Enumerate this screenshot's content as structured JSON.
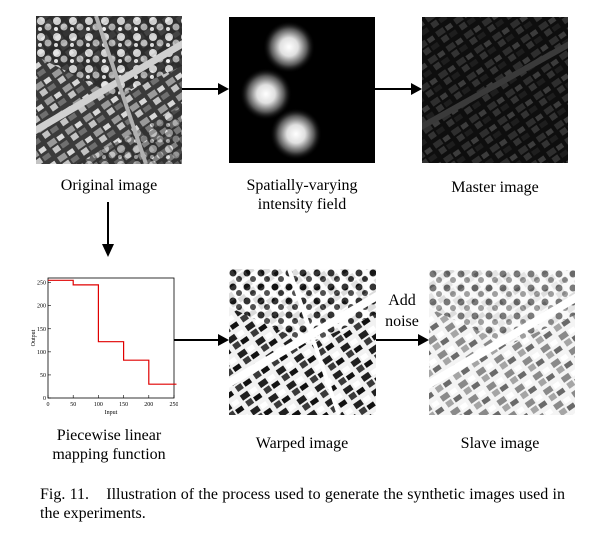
{
  "figure": {
    "captions": {
      "original": "Original image",
      "field_line1": "Spatially-varying",
      "field_line2": "intensity field",
      "master": "Master image",
      "piecewise_line1": "Piecewise linear",
      "piecewise_line2": "mapping function",
      "warped": "Warped image",
      "slave": "Slave image"
    },
    "noise_label_line1": "Add",
    "noise_label_line2": "noise",
    "caption_label": "Fig. 11.",
    "caption_text": "Illustration of the process used to generate the synthetic images used in the experiments."
  },
  "chart_data": {
    "type": "line",
    "xlabel": "Input",
    "ylabel": "Output",
    "xlim": [
      0,
      250
    ],
    "ylim": [
      0,
      260
    ],
    "xticks": [
      "0",
      "50",
      "100",
      "150",
      "200",
      "250"
    ],
    "yticks": [
      "0",
      "50",
      "100",
      "150",
      "200",
      "250"
    ],
    "series": [
      {
        "color": "#e00000",
        "points": [
          [
            0,
            255
          ],
          [
            50,
            255
          ],
          [
            50,
            245
          ],
          [
            100,
            245
          ],
          [
            100,
            122
          ],
          [
            150,
            122
          ],
          [
            150,
            82
          ],
          [
            200,
            82
          ],
          [
            200,
            30
          ],
          [
            255,
            30
          ]
        ]
      }
    ]
  }
}
